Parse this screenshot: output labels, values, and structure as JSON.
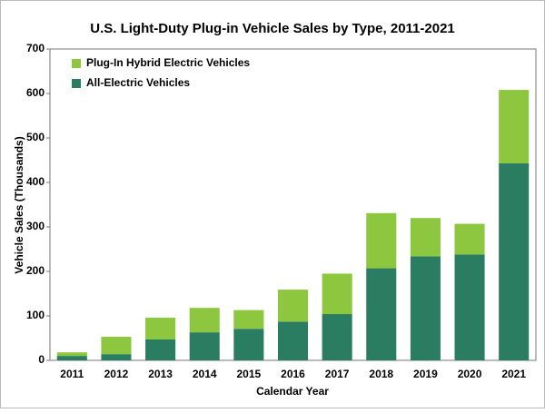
{
  "chart_data": {
    "type": "stacked-bar",
    "title": "U.S. Light-Duty Plug-in Vehicle Sales by Type, 2011-2021",
    "x_label": "Calendar Year",
    "y_label": "Vehicle Sales (Thousands)",
    "categories": [
      "2011",
      "2012",
      "2013",
      "2014",
      "2015",
      "2016",
      "2017",
      "2018",
      "2019",
      "2020",
      "2021"
    ],
    "series": [
      {
        "name": "All-Electric Vehicles",
        "color": "#2a7d60",
        "values": [
          10,
          14,
          47,
          63,
          71,
          87,
          104,
          207,
          234,
          238,
          443
        ]
      },
      {
        "name": "Plug-In Hybrid Electric Vehicles",
        "color": "#8dc63f",
        "values": [
          8,
          39,
          49,
          55,
          42,
          72,
          91,
          124,
          86,
          69,
          165
        ]
      }
    ],
    "ylim": [
      0,
      700
    ],
    "yticks": [
      0,
      100,
      200,
      300,
      400,
      500,
      600,
      700
    ],
    "legend": "upper-left"
  }
}
